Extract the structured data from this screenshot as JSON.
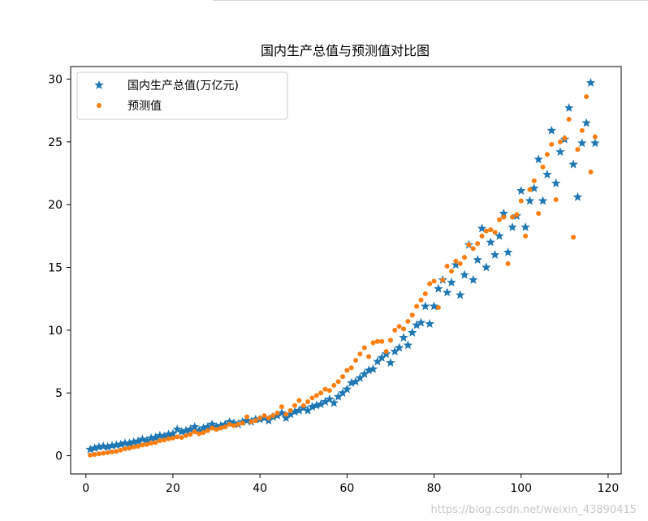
{
  "chart_data": {
    "type": "scatter",
    "title": "国内生产总值与预测值对比图",
    "xlabel": "",
    "ylabel": "",
    "xlim": [
      -3.5,
      123
    ],
    "ylim": [
      -1.45,
      31
    ],
    "xticks": [
      0,
      20,
      40,
      60,
      80,
      100,
      120
    ],
    "yticks": [
      0,
      5,
      10,
      15,
      20,
      25,
      30
    ],
    "grid": false,
    "legend_position": "upper-left",
    "series": [
      {
        "name": "国内生产总值(万亿元)",
        "marker": "star",
        "color": "#1f77b4",
        "x": [
          1,
          2,
          3,
          4,
          5,
          6,
          7,
          8,
          9,
          10,
          11,
          12,
          13,
          14,
          15,
          16,
          17,
          18,
          19,
          20,
          21,
          22,
          23,
          24,
          25,
          26,
          27,
          28,
          29,
          30,
          31,
          32,
          33,
          34,
          35,
          36,
          37,
          38,
          39,
          40,
          41,
          42,
          43,
          44,
          45,
          46,
          47,
          48,
          49,
          50,
          51,
          52,
          53,
          54,
          55,
          56,
          57,
          58,
          59,
          60,
          61,
          62,
          63,
          64,
          65,
          66,
          67,
          68,
          69,
          70,
          71,
          72,
          73,
          74,
          75,
          76,
          77,
          78,
          79,
          80,
          81,
          82,
          83,
          84,
          85,
          86,
          87,
          88,
          89,
          90,
          91,
          92,
          93,
          94,
          95,
          96,
          97,
          98,
          99,
          100,
          101,
          102,
          103,
          104,
          105,
          106,
          107,
          108,
          109,
          110,
          111,
          112,
          113,
          114,
          115,
          116,
          117
        ],
        "y": [
          0.5,
          0.6,
          0.7,
          0.75,
          0.7,
          0.8,
          0.85,
          0.9,
          1.0,
          1.0,
          1.1,
          1.15,
          1.3,
          1.2,
          1.4,
          1.45,
          1.6,
          1.55,
          1.7,
          1.75,
          2.1,
          1.9,
          2.0,
          2.1,
          2.3,
          2.0,
          2.2,
          2.3,
          2.5,
          2.3,
          2.4,
          2.5,
          2.7,
          2.6,
          2.5,
          2.7,
          2.8,
          2.7,
          2.9,
          2.9,
          3.0,
          2.8,
          3.1,
          3.2,
          3.4,
          3.0,
          3.3,
          3.5,
          3.6,
          3.8,
          3.6,
          3.9,
          4.0,
          4.1,
          4.3,
          4.5,
          4.2,
          4.7,
          5.0,
          5.3,
          5.8,
          5.9,
          6.2,
          6.5,
          6.8,
          6.9,
          7.5,
          7.8,
          8.1,
          7.4,
          8.3,
          8.6,
          9.4,
          8.8,
          9.8,
          10.4,
          10.6,
          11.9,
          10.5,
          11.9,
          13.3,
          14.0,
          13.0,
          13.8,
          15.2,
          12.8,
          14.4,
          16.8,
          14.0,
          15.6,
          18.1,
          15.0,
          17.0,
          16.0,
          17.5,
          19.3,
          16.2,
          18.2,
          19.1,
          21.1,
          18.2,
          20.3,
          21.3,
          23.6,
          20.3,
          22.4,
          25.9,
          21.7,
          24.2,
          25.2,
          27.7,
          23.2,
          20.6,
          24.9,
          26.5,
          29.7,
          24.9
        ]
      },
      {
        "name": "预测值",
        "marker": "circle",
        "color": "#ff7f0e",
        "x": [
          1,
          2,
          3,
          4,
          5,
          6,
          7,
          8,
          9,
          10,
          11,
          12,
          13,
          14,
          15,
          16,
          17,
          18,
          19,
          20,
          21,
          22,
          23,
          24,
          25,
          26,
          27,
          28,
          29,
          30,
          31,
          32,
          33,
          34,
          35,
          36,
          37,
          38,
          39,
          40,
          41,
          42,
          43,
          44,
          45,
          46,
          47,
          48,
          49,
          50,
          51,
          52,
          53,
          54,
          55,
          56,
          57,
          58,
          59,
          60,
          61,
          62,
          63,
          64,
          65,
          66,
          67,
          68,
          69,
          70,
          71,
          72,
          73,
          74,
          75,
          76,
          77,
          78,
          79,
          80,
          81,
          82,
          83,
          84,
          85,
          86,
          87,
          88,
          89,
          90,
          91,
          92,
          93,
          94,
          95,
          96,
          97,
          98,
          99,
          100,
          101,
          102,
          103,
          104,
          105,
          106,
          107,
          108,
          109,
          110,
          111,
          112,
          113,
          114,
          115,
          116,
          117
        ],
        "y": [
          0.05,
          0.1,
          0.15,
          0.2,
          0.25,
          0.3,
          0.35,
          0.45,
          0.55,
          0.6,
          0.7,
          0.75,
          0.85,
          0.9,
          1.0,
          1.05,
          1.2,
          1.25,
          1.35,
          1.4,
          1.5,
          1.45,
          1.6,
          1.7,
          1.9,
          1.75,
          1.85,
          2.0,
          2.2,
          2.1,
          2.2,
          2.3,
          2.5,
          2.4,
          2.5,
          2.6,
          3.1,
          2.7,
          2.8,
          3.0,
          3.2,
          3.0,
          3.2,
          3.4,
          3.9,
          3.3,
          3.6,
          4.0,
          4.4,
          4.0,
          4.3,
          4.6,
          4.8,
          5.0,
          5.3,
          5.2,
          5.6,
          5.9,
          6.3,
          6.8,
          7.0,
          7.6,
          8.1,
          8.6,
          7.9,
          9.0,
          9.1,
          9.1,
          8.3,
          9.2,
          10.0,
          10.3,
          10.1,
          10.7,
          11.2,
          11.9,
          12.4,
          12.9,
          13.7,
          13.9,
          11.8,
          14.0,
          15.1,
          14.7,
          15.5,
          15.3,
          15.8,
          16.8,
          16.5,
          16.9,
          17.5,
          17.9,
          18.0,
          17.8,
          18.8,
          19.0,
          15.3,
          19.0,
          19.2,
          20.3,
          17.5,
          21.2,
          21.9,
          19.3,
          23.0,
          24.0,
          24.8,
          20.4,
          25.0,
          25.3,
          26.8,
          17.4,
          24.4,
          25.9,
          28.6,
          22.6,
          25.4
        ]
      }
    ]
  },
  "footer": {
    "watermark": "https://blog.csdn.net/weixin_43890415"
  }
}
